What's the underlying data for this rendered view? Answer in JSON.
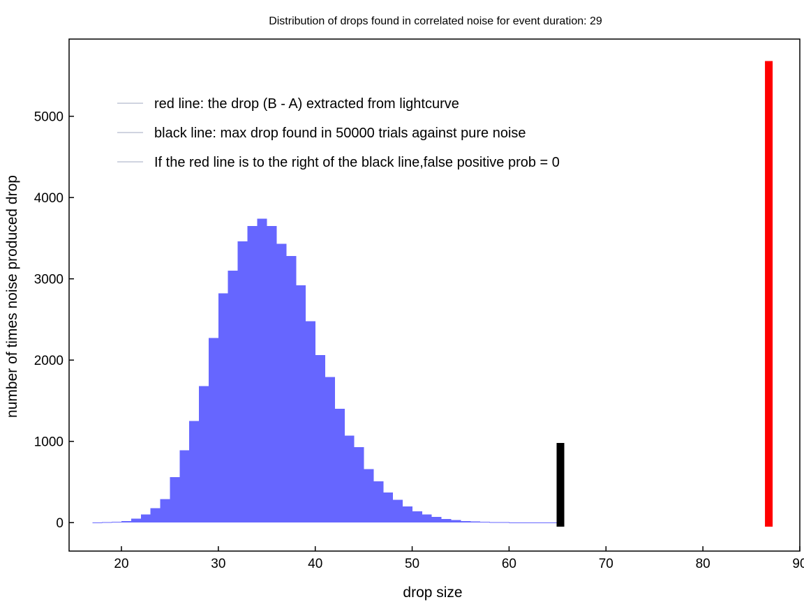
{
  "chart_data": {
    "type": "bar",
    "title": "Distribution of drops found in correlated noise for event duration: 29",
    "xlabel": "drop size",
    "ylabel": "number of times noise produced drop",
    "xlim": [
      14.6,
      90
    ],
    "ylim": [
      -350,
      5950
    ],
    "x_ticks": [
      "20",
      "30",
      "40",
      "50",
      "60",
      "70",
      "80",
      "90"
    ],
    "y_ticks": [
      "0",
      "1000",
      "2000",
      "3000",
      "4000",
      "5000"
    ],
    "grid": false,
    "legend_position": "top-left",
    "legend": [
      "red line: the drop (B - A) extracted from lightcurve",
      "black line: max drop found in 50000 trials against pure noise",
      "If the red line is to the right of the black line,false positive prob = 0"
    ],
    "histogram_color": "#6666ff",
    "bin_width": 1,
    "bins": [
      {
        "x": 17.5,
        "count": 2
      },
      {
        "x": 18.5,
        "count": 5
      },
      {
        "x": 19.5,
        "count": 10
      },
      {
        "x": 20.5,
        "count": 20
      },
      {
        "x": 21.5,
        "count": 50
      },
      {
        "x": 22.5,
        "count": 100
      },
      {
        "x": 23.5,
        "count": 180
      },
      {
        "x": 24.5,
        "count": 290
      },
      {
        "x": 25.5,
        "count": 560
      },
      {
        "x": 26.5,
        "count": 890
      },
      {
        "x": 27.5,
        "count": 1250
      },
      {
        "x": 28.5,
        "count": 1680
      },
      {
        "x": 29.5,
        "count": 2270
      },
      {
        "x": 30.5,
        "count": 2820
      },
      {
        "x": 31.5,
        "count": 3100
      },
      {
        "x": 32.5,
        "count": 3460
      },
      {
        "x": 33.5,
        "count": 3650
      },
      {
        "x": 34.5,
        "count": 3740
      },
      {
        "x": 35.5,
        "count": 3650
      },
      {
        "x": 36.5,
        "count": 3430
      },
      {
        "x": 37.5,
        "count": 3280
      },
      {
        "x": 38.5,
        "count": 2920
      },
      {
        "x": 39.5,
        "count": 2480
      },
      {
        "x": 40.5,
        "count": 2060
      },
      {
        "x": 41.5,
        "count": 1790
      },
      {
        "x": 42.5,
        "count": 1400
      },
      {
        "x": 43.5,
        "count": 1070
      },
      {
        "x": 44.5,
        "count": 930
      },
      {
        "x": 45.5,
        "count": 660
      },
      {
        "x": 46.5,
        "count": 510
      },
      {
        "x": 47.5,
        "count": 370
      },
      {
        "x": 48.5,
        "count": 280
      },
      {
        "x": 49.5,
        "count": 200
      },
      {
        "x": 50.5,
        "count": 140
      },
      {
        "x": 51.5,
        "count": 100
      },
      {
        "x": 52.5,
        "count": 70
      },
      {
        "x": 53.5,
        "count": 45
      },
      {
        "x": 54.5,
        "count": 30
      },
      {
        "x": 55.5,
        "count": 20
      },
      {
        "x": 56.5,
        "count": 14
      },
      {
        "x": 57.5,
        "count": 10
      },
      {
        "x": 58.5,
        "count": 7
      },
      {
        "x": 59.5,
        "count": 5
      },
      {
        "x": 60.5,
        "count": 4
      },
      {
        "x": 61.5,
        "count": 3
      },
      {
        "x": 62.5,
        "count": 2
      },
      {
        "x": 63.5,
        "count": 2
      },
      {
        "x": 64.5,
        "count": 1
      }
    ],
    "markers": [
      {
        "name": "black line",
        "x": 65.3,
        "y_from": -50,
        "y_to": 980,
        "color": "#000000"
      },
      {
        "name": "red line",
        "x": 86.8,
        "y_from": -50,
        "y_to": 5680,
        "color": "#ff0000"
      }
    ]
  }
}
